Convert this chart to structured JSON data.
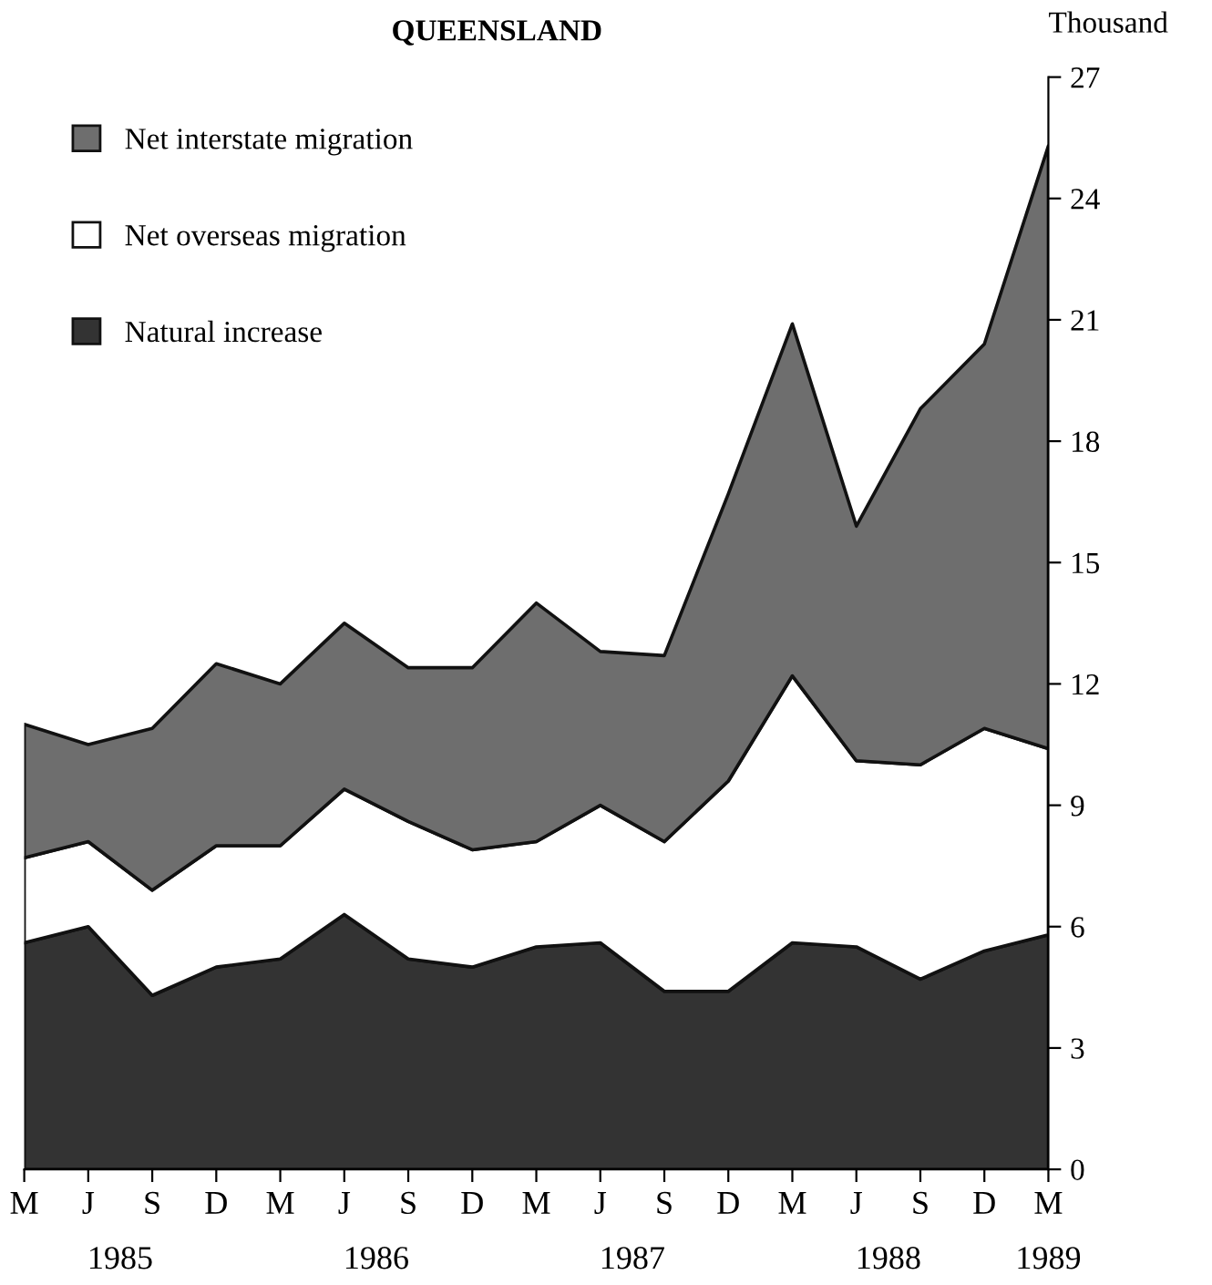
{
  "chart_data": {
    "type": "area",
    "title": "QUEENSLAND",
    "ylabel": "Thousand",
    "stacked": true,
    "categories": [
      "M",
      "J",
      "S",
      "D",
      "M",
      "J",
      "S",
      "D",
      "M",
      "J",
      "S",
      "D",
      "M",
      "J",
      "S",
      "D",
      "M"
    ],
    "series": [
      {
        "name": "Natural increase",
        "color": "#333333",
        "values": [
          5.6,
          6.0,
          4.3,
          5.0,
          5.2,
          6.3,
          5.2,
          5.0,
          5.5,
          5.6,
          4.4,
          4.4,
          5.6,
          5.5,
          4.7,
          5.4,
          5.8
        ]
      },
      {
        "name": "Net overseas migration",
        "color": "#ffffff",
        "values": [
          2.1,
          2.1,
          2.6,
          3.0,
          2.8,
          3.1,
          3.4,
          2.9,
          2.6,
          3.4,
          3.7,
          5.2,
          6.6,
          4.6,
          5.3,
          5.5,
          4.6
        ]
      },
      {
        "name": "Net interstate migration",
        "color": "#6e6e6e",
        "values": [
          3.3,
          2.4,
          4.0,
          4.5,
          4.0,
          4.1,
          3.8,
          4.5,
          5.9,
          3.8,
          4.6,
          7.1,
          8.7,
          5.8,
          8.8,
          9.5,
          14.9
        ]
      }
    ],
    "ylim": [
      0,
      27
    ],
    "yticks": [
      0,
      3,
      6,
      9,
      12,
      15,
      18,
      21,
      24,
      27
    ],
    "grid": false,
    "legend": "top left",
    "annotations": [
      "1985",
      "1986",
      "1987",
      "1988",
      "1989"
    ]
  }
}
